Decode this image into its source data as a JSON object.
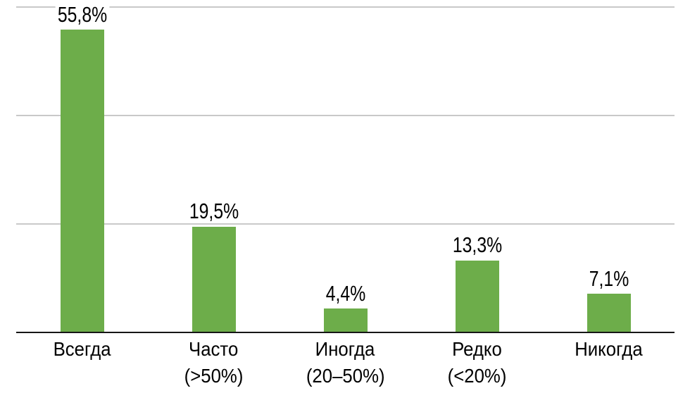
{
  "chart_data": {
    "type": "bar",
    "title": "",
    "xlabel": "",
    "ylabel": "",
    "categories": [
      "Всегда",
      "Часто (>50%)",
      "Иногда (20–50%)",
      "Редко (<20%)",
      "Никогда"
    ],
    "values": [
      55.8,
      19.5,
      4.4,
      13.3,
      7.1
    ],
    "value_labels": [
      "55,8%",
      "19,5%",
      "4,4%",
      "13,3%",
      "7,1%"
    ],
    "category_lines": [
      [
        "Всегда"
      ],
      [
        "Часто",
        "(>50%)"
      ],
      [
        "Иногда",
        "(20–50%)"
      ],
      [
        "Редко",
        "(<20%)"
      ],
      [
        "Никогда"
      ]
    ],
    "ylim": [
      0,
      60
    ],
    "gridline_percents": [
      60,
      40,
      20
    ],
    "grid": true,
    "legend": "none",
    "bar_color": "#6dad4a",
    "gridline_color": "#c9c9c9",
    "axis_color": "#161616",
    "text_color": "#000000",
    "background": "#ffffff"
  }
}
